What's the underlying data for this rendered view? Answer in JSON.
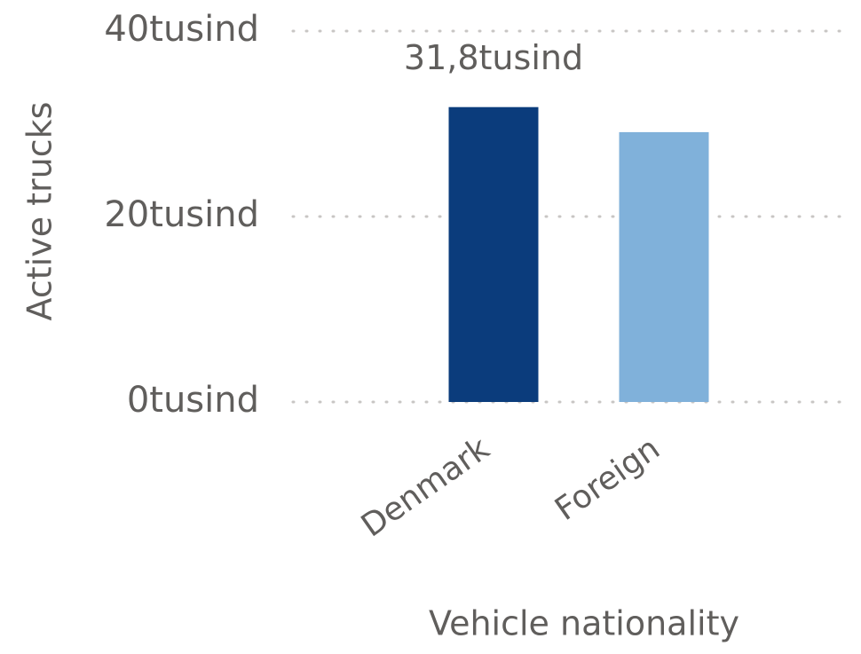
{
  "chart_data": {
    "type": "bar",
    "y_label": "Active trucks",
    "x_label": "Vehicle nationality",
    "categories": [
      "Denmark",
      "Foreign"
    ],
    "values": [
      31800,
      29100
    ],
    "value_labels": [
      "31,8tusind",
      null
    ],
    "colors": [
      "#0b3c7c",
      "#80b1da"
    ],
    "ylim": [
      0,
      40000
    ],
    "yticks": [
      {
        "value": 0,
        "label": "0tusind"
      },
      {
        "value": 20000,
        "label": "20tusind"
      },
      {
        "value": 40000,
        "label": "40tusind"
      }
    ],
    "grid": true
  }
}
